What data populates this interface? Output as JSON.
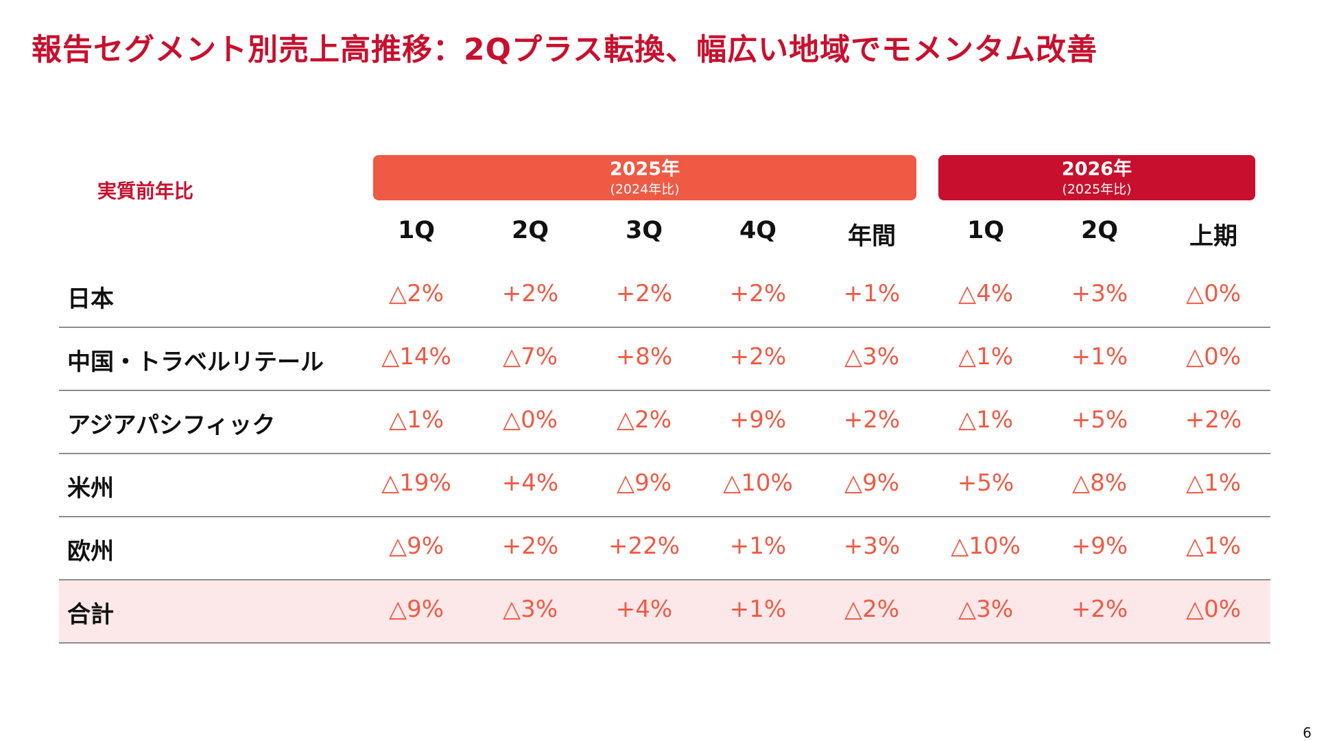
{
  "title": "報告セグメント別売上高推移：2Qプラス転換、幅広い地域でモメンタム改善",
  "metric_label": "実質前年比",
  "year_groups": [
    {
      "label": "2025年",
      "sub": "(2024年比)",
      "color": "#ef5a45"
    },
    {
      "label": "2026年",
      "sub": "(2025年比)",
      "color": "#c8102e"
    }
  ],
  "columns": [
    "1Q",
    "2Q",
    "3Q",
    "4Q",
    "年間",
    "1Q",
    "2Q",
    "上期"
  ],
  "rows": [
    {
      "label": "日本",
      "values": [
        "△2%",
        "+2%",
        "+2%",
        "+2%",
        "+1%",
        "△4%",
        "+3%",
        "△0%"
      ]
    },
    {
      "label": "中国・トラベルリテール",
      "values": [
        "△14%",
        "△7%",
        "+8%",
        "+2%",
        "△3%",
        "△1%",
        "+1%",
        "△0%"
      ]
    },
    {
      "label": "アジアパシフィック",
      "values": [
        "△1%",
        "△0%",
        "△2%",
        "+9%",
        "+2%",
        "△1%",
        "+5%",
        "+2%"
      ]
    },
    {
      "label": "米州",
      "values": [
        "△19%",
        "+4%",
        "△9%",
        "△10%",
        "△9%",
        "+5%",
        "△8%",
        "△1%"
      ]
    },
    {
      "label": "欧州",
      "values": [
        "△9%",
        "+2%",
        "+22%",
        "+1%",
        "+3%",
        "△10%",
        "+9%",
        "△1%"
      ]
    },
    {
      "label": "合計",
      "values": [
        "△9%",
        "△3%",
        "+4%",
        "+1%",
        "△2%",
        "△3%",
        "+2%",
        "△0%"
      ]
    }
  ],
  "total_row_highlight": "#fde8e9",
  "value_color": "#ef5a45",
  "page_number": "6"
}
